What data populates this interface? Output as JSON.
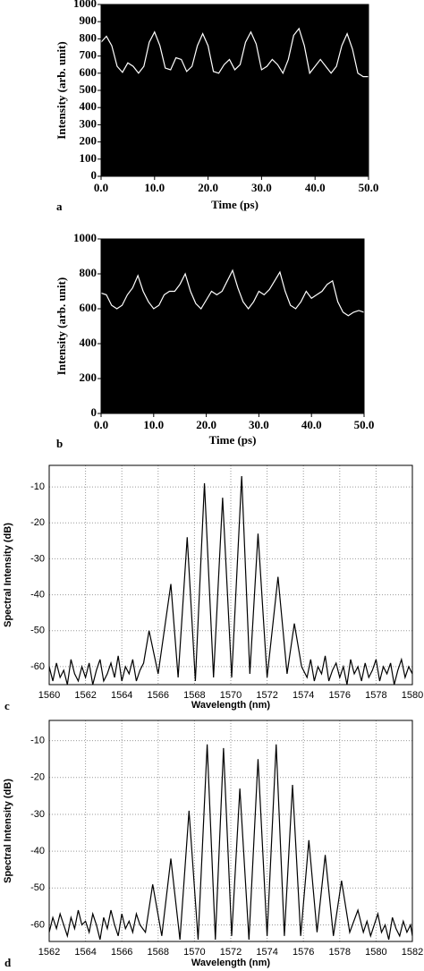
{
  "chart_data": [
    {
      "type": "line",
      "panel_label": "a",
      "x_label": "Time (ps)",
      "y_label": "Intensity (arb. unit)",
      "background": "#000000",
      "color": "#ffffff",
      "grid": false,
      "xlim": [
        0,
        50
      ],
      "ylim": [
        0,
        1000
      ],
      "xticks": [
        {
          "value": 0,
          "label": "0.0"
        },
        {
          "value": 10,
          "label": "10.0"
        },
        {
          "value": 20,
          "label": "20.0"
        },
        {
          "value": 30,
          "label": "30.0"
        },
        {
          "value": 40,
          "label": "40.0"
        },
        {
          "value": 50,
          "label": "50.0"
        }
      ],
      "yticks": [
        0,
        100,
        200,
        300,
        400,
        500,
        600,
        700,
        800,
        900,
        1000
      ],
      "x": [
        0,
        1,
        2,
        3,
        4,
        5,
        6,
        7,
        8,
        9,
        10,
        11,
        12,
        13,
        14,
        15,
        16,
        17,
        18,
        19,
        20,
        21,
        22,
        23,
        24,
        25,
        26,
        27,
        28,
        29,
        30,
        31,
        32,
        33,
        34,
        35,
        36,
        37,
        38,
        39,
        40,
        41,
        42,
        43,
        44,
        45,
        46,
        47,
        48,
        49,
        50
      ],
      "values": [
        780,
        815,
        760,
        640,
        605,
        660,
        640,
        600,
        640,
        780,
        840,
        760,
        630,
        620,
        690,
        680,
        610,
        640,
        760,
        830,
        760,
        610,
        600,
        650,
        680,
        620,
        650,
        780,
        840,
        770,
        620,
        640,
        680,
        650,
        600,
        680,
        820,
        860,
        760,
        600,
        640,
        680,
        640,
        600,
        640,
        760,
        830,
        740,
        600,
        580,
        580
      ]
    },
    {
      "type": "line",
      "panel_label": "b",
      "x_label": "Time (ps)",
      "y_label": "Intensity (arb. unit)",
      "background": "#000000",
      "color": "#ffffff",
      "grid": false,
      "xlim": [
        0,
        50
      ],
      "ylim": [
        0,
        1000
      ],
      "xticks": [
        {
          "value": 0,
          "label": "0.0"
        },
        {
          "value": 10,
          "label": "10.0"
        },
        {
          "value": 20,
          "label": "20.0"
        },
        {
          "value": 30,
          "label": "30.0"
        },
        {
          "value": 40,
          "label": "40.0"
        },
        {
          "value": 50,
          "label": "50.0"
        }
      ],
      "yticks": [
        0,
        200,
        400,
        600,
        800,
        1000
      ],
      "x": [
        0,
        1,
        2,
        3,
        4,
        5,
        6,
        7,
        8,
        9,
        10,
        11,
        12,
        13,
        14,
        15,
        16,
        17,
        18,
        19,
        20,
        21,
        22,
        23,
        24,
        25,
        26,
        27,
        28,
        29,
        30,
        31,
        32,
        33,
        34,
        35,
        36,
        37,
        38,
        39,
        40,
        41,
        42,
        43,
        44,
        45,
        46,
        47,
        48,
        49,
        50
      ],
      "values": [
        690,
        680,
        620,
        600,
        620,
        680,
        720,
        790,
        700,
        640,
        600,
        620,
        680,
        700,
        700,
        740,
        800,
        700,
        630,
        600,
        650,
        700,
        680,
        700,
        760,
        820,
        720,
        640,
        600,
        640,
        700,
        680,
        710,
        760,
        810,
        700,
        620,
        600,
        640,
        700,
        660,
        680,
        700,
        740,
        760,
        640,
        580,
        560,
        580,
        590,
        580
      ]
    },
    {
      "type": "line",
      "panel_label": "c",
      "x_label": "Wavelength (nm)",
      "y_label": "Spectral Intensity (dB)",
      "background": "#ffffff",
      "color": "#000000",
      "grid": true,
      "xlim": [
        1560,
        1580
      ],
      "ylim": [
        -65,
        -4
      ],
      "xticks": [
        1560,
        1562,
        1564,
        1566,
        1568,
        1570,
        1572,
        1574,
        1576,
        1578,
        1580
      ],
      "yticks": [
        -60,
        -50,
        -40,
        -30,
        -20,
        -10
      ],
      "x": [
        1560,
        1560.2,
        1560.4,
        1560.6,
        1560.8,
        1561,
        1561.2,
        1561.4,
        1561.6,
        1561.8,
        1562,
        1562.2,
        1562.4,
        1562.6,
        1562.8,
        1563,
        1563.2,
        1563.4,
        1563.6,
        1563.8,
        1564,
        1564.2,
        1564.4,
        1564.6,
        1564.8,
        1565,
        1565.2,
        1565.5,
        1566,
        1566.7,
        1567.1,
        1567.6,
        1568.05,
        1568.55,
        1569.05,
        1569.55,
        1570.05,
        1570.6,
        1571.05,
        1571.5,
        1572,
        1572.6,
        1573.1,
        1573.5,
        1573.9,
        1574.2,
        1574.4,
        1574.6,
        1574.8,
        1575,
        1575.2,
        1575.4,
        1575.6,
        1575.8,
        1576,
        1576.2,
        1576.4,
        1576.6,
        1576.8,
        1577,
        1577.2,
        1577.4,
        1577.6,
        1577.8,
        1578,
        1578.2,
        1578.4,
        1578.6,
        1578.8,
        1579,
        1579.2,
        1579.4,
        1579.6,
        1579.8,
        1580
      ],
      "values": [
        -60,
        -64,
        -59,
        -63,
        -61,
        -65,
        -58,
        -62,
        -64,
        -60,
        -63,
        -59,
        -65,
        -61,
        -58,
        -64,
        -62,
        -59,
        -63,
        -57,
        -64,
        -60,
        -62,
        -58,
        -64,
        -61,
        -59,
        -50,
        -62,
        -37,
        -63,
        -24,
        -64,
        -9,
        -63,
        -13,
        -63,
        -7,
        -62,
        -23,
        -63,
        -35,
        -62,
        -48,
        -60,
        -63,
        -58,
        -64,
        -60,
        -62,
        -57,
        -64,
        -61,
        -59,
        -63,
        -60,
        -65,
        -58,
        -62,
        -60,
        -64,
        -59,
        -63,
        -61,
        -58,
        -64,
        -60,
        -62,
        -59,
        -65,
        -61,
        -58,
        -63,
        -60,
        -62
      ]
    },
    {
      "type": "line",
      "panel_label": "d",
      "x_label": "Wavelength (nm)",
      "y_label": "Spectral Intensity (dB)",
      "background": "#ffffff",
      "color": "#000000",
      "grid": true,
      "xlim": [
        1562,
        1582
      ],
      "ylim": [
        -64.5,
        -4.5
      ],
      "xticks": [
        1562,
        1564,
        1566,
        1568,
        1570,
        1572,
        1574,
        1576,
        1578,
        1580,
        1582
      ],
      "yticks": [
        -60,
        -50,
        -40,
        -30,
        -20,
        -10
      ],
      "x": [
        1562,
        1562.2,
        1562.4,
        1562.6,
        1562.8,
        1563,
        1563.2,
        1563.4,
        1563.6,
        1563.8,
        1564,
        1564.2,
        1564.4,
        1564.6,
        1564.8,
        1565,
        1565.2,
        1565.4,
        1565.6,
        1565.8,
        1566,
        1566.2,
        1566.4,
        1566.6,
        1566.8,
        1567,
        1567.3,
        1567.7,
        1568.2,
        1568.7,
        1569.2,
        1569.7,
        1570.2,
        1570.7,
        1571.15,
        1571.6,
        1572.05,
        1572.5,
        1573.0,
        1573.5,
        1574.0,
        1574.5,
        1574.95,
        1575.4,
        1575.85,
        1576.3,
        1576.75,
        1577.2,
        1577.65,
        1578.1,
        1578.55,
        1579.0,
        1579.3,
        1579.5,
        1579.7,
        1579.9,
        1580.1,
        1580.3,
        1580.5,
        1580.7,
        1580.9,
        1581.1,
        1581.3,
        1581.5,
        1581.7,
        1581.9,
        1582
      ],
      "values": [
        -62,
        -58,
        -61,
        -57,
        -60,
        -63,
        -58,
        -61,
        -56,
        -60,
        -59,
        -62,
        -57,
        -60,
        -64,
        -58,
        -61,
        -56,
        -60,
        -63,
        -57,
        -61,
        -59,
        -62,
        -57,
        -60,
        -62,
        -49,
        -63,
        -42,
        -64,
        -29,
        -64,
        -11,
        -64,
        -12,
        -63,
        -23,
        -64,
        -15,
        -63,
        -11,
        -63,
        -22,
        -63,
        -37,
        -62,
        -41,
        -63,
        -48,
        -62,
        -56,
        -62,
        -59,
        -63,
        -60,
        -57,
        -62,
        -60,
        -64,
        -58,
        -61,
        -63,
        -59,
        -62,
        -60,
        -63
      ]
    }
  ]
}
